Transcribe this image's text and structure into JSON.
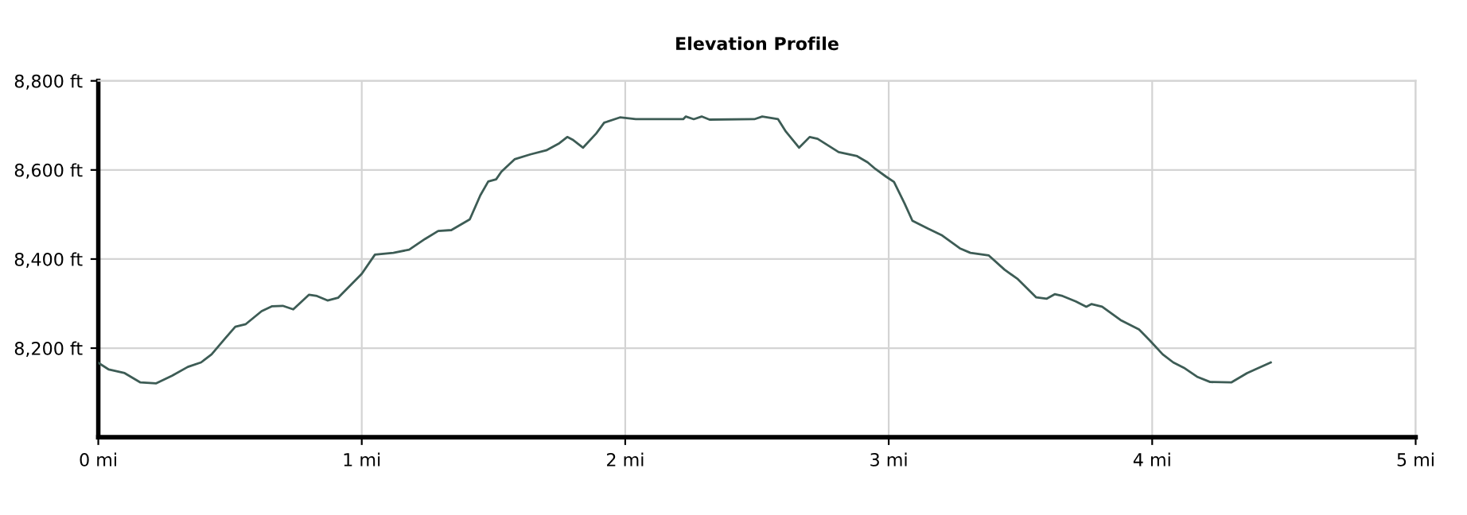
{
  "chart_data": {
    "type": "line",
    "title": "Elevation Profile",
    "x": [
      0,
      0.04,
      0.1,
      0.16,
      0.22,
      0.28,
      0.34,
      0.39,
      0.43,
      0.48,
      0.52,
      0.56,
      0.62,
      0.66,
      0.7,
      0.74,
      0.8,
      0.83,
      0.87,
      0.91,
      1.0,
      1.05,
      1.12,
      1.18,
      1.24,
      1.29,
      1.34,
      1.41,
      1.45,
      1.48,
      1.51,
      1.53,
      1.58,
      1.64,
      1.7,
      1.75,
      1.78,
      1.8,
      1.84,
      1.89,
      1.92,
      1.98,
      2.04,
      2.22,
      2.23,
      2.26,
      2.29,
      2.32,
      2.49,
      2.52,
      2.58,
      2.61,
      2.66,
      2.7,
      2.73,
      2.81,
      2.88,
      2.92,
      2.95,
      2.99,
      3.02,
      3.06,
      3.09,
      3.15,
      3.2,
      3.27,
      3.31,
      3.38,
      3.44,
      3.49,
      3.56,
      3.6,
      3.63,
      3.66,
      3.71,
      3.75,
      3.77,
      3.81,
      3.88,
      3.95,
      3.99,
      4.04,
      4.08,
      4.12,
      4.17,
      4.22,
      4.3,
      4.36,
      4.39,
      4.45
    ],
    "series": [
      {
        "color": "#3d5c55",
        "values": [
          8167,
          8152,
          8144,
          8123,
          8121,
          8138,
          8158,
          8168,
          8186,
          8221,
          8248,
          8254,
          8283,
          8294,
          8295,
          8287,
          8320,
          8317,
          8307,
          8313,
          8367,
          8410,
          8414,
          8421,
          8445,
          8463,
          8465,
          8489,
          8543,
          8574,
          8579,
          8596,
          8624,
          8635,
          8644,
          8660,
          8674,
          8668,
          8650,
          8682,
          8706,
          8718,
          8714,
          8714,
          8720,
          8714,
          8720,
          8713,
          8714,
          8720,
          8714,
          8686,
          8650,
          8674,
          8670,
          8640,
          8631,
          8617,
          8602,
          8585,
          8573,
          8525,
          8486,
          8468,
          8454,
          8424,
          8414,
          8408,
          8376,
          8355,
          8314,
          8311,
          8321,
          8317,
          8305,
          8293,
          8299,
          8293,
          8263,
          8242,
          8218,
          8186,
          8168,
          8156,
          8136,
          8124,
          8123,
          8144,
          8152,
          8168
        ]
      }
    ],
    "xlim": [
      0,
      5
    ],
    "xticks": [
      {
        "value": 0,
        "label": "0 mi"
      },
      {
        "value": 1,
        "label": "1 mi"
      },
      {
        "value": 2,
        "label": "2 mi"
      },
      {
        "value": 3,
        "label": "3 mi"
      },
      {
        "value": 4,
        "label": "4 mi"
      },
      {
        "value": 5,
        "label": "5 mi"
      }
    ],
    "ylim": [
      8000,
      8800
    ],
    "yticks": [
      {
        "value": 8200,
        "label": "8,200 ft"
      },
      {
        "value": 8400,
        "label": "8,400 ft"
      },
      {
        "value": 8600,
        "label": "8,600 ft"
      },
      {
        "value": 8800,
        "label": "8,800 ft"
      }
    ],
    "grid": true,
    "marker": "none",
    "line_style": "solid"
  }
}
